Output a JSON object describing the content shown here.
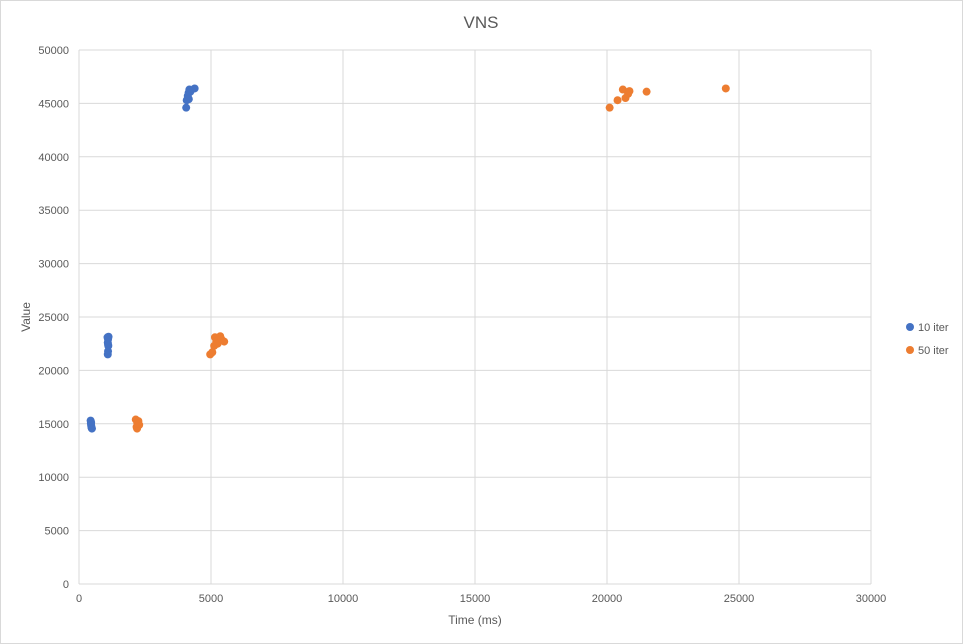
{
  "chart_data": {
    "type": "scatter",
    "title": "VNS",
    "xlabel": "Time (ms)",
    "ylabel": "Value",
    "xlim": [
      0,
      30000
    ],
    "ylim": [
      0,
      50000
    ],
    "xticks": [
      0,
      5000,
      10000,
      15000,
      20000,
      25000,
      30000
    ],
    "yticks": [
      0,
      5000,
      10000,
      15000,
      20000,
      25000,
      30000,
      35000,
      40000,
      45000,
      50000
    ],
    "grid": true,
    "legend_position": "right",
    "series": [
      {
        "name": "10 iter",
        "color": "#4472c4",
        "points": [
          [
            440,
            15300
          ],
          [
            450,
            15050
          ],
          [
            460,
            14850
          ],
          [
            470,
            14700
          ],
          [
            480,
            14600
          ],
          [
            490,
            14550
          ],
          [
            460,
            15150
          ],
          [
            1080,
            23100
          ],
          [
            1100,
            22900
          ],
          [
            1090,
            22600
          ],
          [
            1110,
            22300
          ],
          [
            1100,
            21800
          ],
          [
            1090,
            21500
          ],
          [
            1120,
            23150
          ],
          [
            1100,
            22450
          ],
          [
            4060,
            44600
          ],
          [
            4080,
            45300
          ],
          [
            4120,
            45700
          ],
          [
            4150,
            46000
          ],
          [
            4180,
            46300
          ],
          [
            4220,
            46100
          ],
          [
            4380,
            46400
          ],
          [
            4160,
            45400
          ]
        ]
      },
      {
        "name": "50 iter",
        "color": "#ed7d31",
        "points": [
          [
            2150,
            15400
          ],
          [
            2180,
            14700
          ],
          [
            2200,
            14550
          ],
          [
            2250,
            15250
          ],
          [
            2280,
            14900
          ],
          [
            2210,
            15050
          ],
          [
            4970,
            21500
          ],
          [
            5050,
            21700
          ],
          [
            5150,
            23100
          ],
          [
            5200,
            22700
          ],
          [
            5250,
            22500
          ],
          [
            5350,
            23200
          ],
          [
            5400,
            22900
          ],
          [
            5500,
            22700
          ],
          [
            5120,
            22300
          ],
          [
            20100,
            44600
          ],
          [
            20400,
            45300
          ],
          [
            20600,
            46300
          ],
          [
            20700,
            45500
          ],
          [
            20800,
            45900
          ],
          [
            20850,
            46150
          ],
          [
            21500,
            46100
          ],
          [
            24500,
            46400
          ]
        ]
      }
    ]
  }
}
